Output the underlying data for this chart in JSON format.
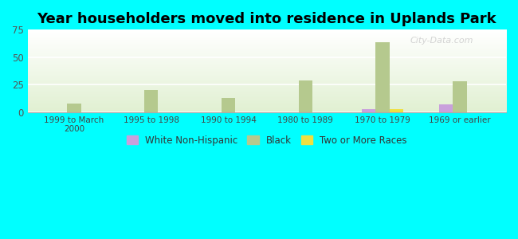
{
  "title": "Year householders moved into residence in Uplands Park",
  "categories": [
    "1999 to March\n2000",
    "1995 to 1998",
    "1990 to 1994",
    "1980 to 1989",
    "1970 to 1979",
    "1969 or earlier"
  ],
  "series": {
    "White Non-Hispanic": [
      0,
      0,
      0,
      0,
      3,
      7
    ],
    "Black": [
      8,
      20,
      13,
      29,
      64,
      28
    ],
    "Two or More Races": [
      0,
      0,
      0,
      0,
      3,
      0
    ]
  },
  "colors": {
    "White Non-Hispanic": "#c9a0dc",
    "Black": "#b5c98e",
    "Two or More Races": "#f0e040"
  },
  "ylim": [
    0,
    75
  ],
  "yticks": [
    0,
    25,
    50,
    75
  ],
  "background_color": "#00ffff",
  "watermark": "City-Data.com",
  "bar_width": 0.18,
  "legend_fontsize": 8.5,
  "title_fontsize": 13
}
